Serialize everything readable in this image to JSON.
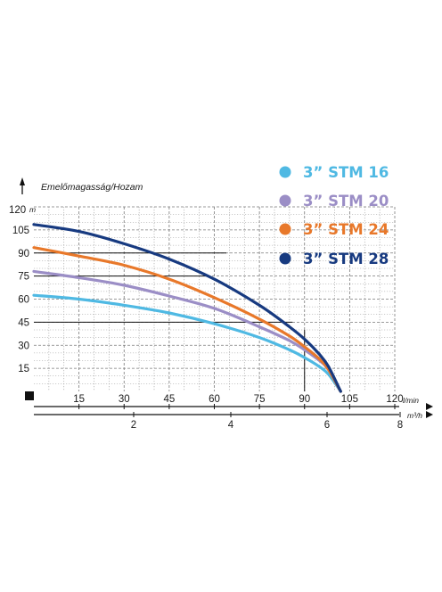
{
  "chart_data": {
    "type": "line",
    "ylabel": "Emelőmagasság/Hozam",
    "y_unit": "m",
    "x_unit": "l/min",
    "x2_unit": "m³/h",
    "ylim": [
      0,
      120
    ],
    "xlim": [
      0,
      120
    ],
    "y_ticks": [
      "120",
      "105",
      "90",
      "75",
      "60",
      "45",
      "30",
      "15"
    ],
    "x_ticks": [
      "15",
      "30",
      "45",
      "60",
      "75",
      "90",
      "105",
      "120"
    ],
    "x2_ticks": [
      "2",
      "4",
      "6",
      "8"
    ],
    "grid": true,
    "legend_position": "top-right",
    "series": [
      {
        "name": "3” STM 16",
        "color": "#4fb9e3",
        "x": [
          0,
          15,
          30,
          45,
          60,
          75,
          85,
          90,
          95,
          98,
          102
        ],
        "y": [
          62.5,
          60,
          56,
          51,
          44,
          35,
          27,
          22,
          16,
          11,
          0
        ]
      },
      {
        "name": "3” STM 20",
        "color": "#9b8ec6",
        "x": [
          0,
          15,
          30,
          45,
          60,
          75,
          85,
          90,
          95,
          98,
          102
        ],
        "y": [
          78,
          74,
          69,
          62,
          54,
          42,
          33,
          27,
          20,
          14,
          0
        ]
      },
      {
        "name": "3” STM 24",
        "color": "#e8782a",
        "x": [
          0,
          15,
          30,
          45,
          60,
          75,
          85,
          90,
          95,
          98,
          102
        ],
        "y": [
          93.5,
          88,
          82,
          73,
          61,
          47,
          36,
          29,
          21,
          14,
          0
        ]
      },
      {
        "name": "3” STM 28",
        "color": "#173a80",
        "x": [
          0,
          15,
          30,
          45,
          60,
          75,
          85,
          90,
          95,
          98,
          102
        ],
        "y": [
          108.5,
          104,
          96,
          86,
          73,
          56,
          42,
          34,
          24,
          16,
          0
        ]
      }
    ]
  }
}
